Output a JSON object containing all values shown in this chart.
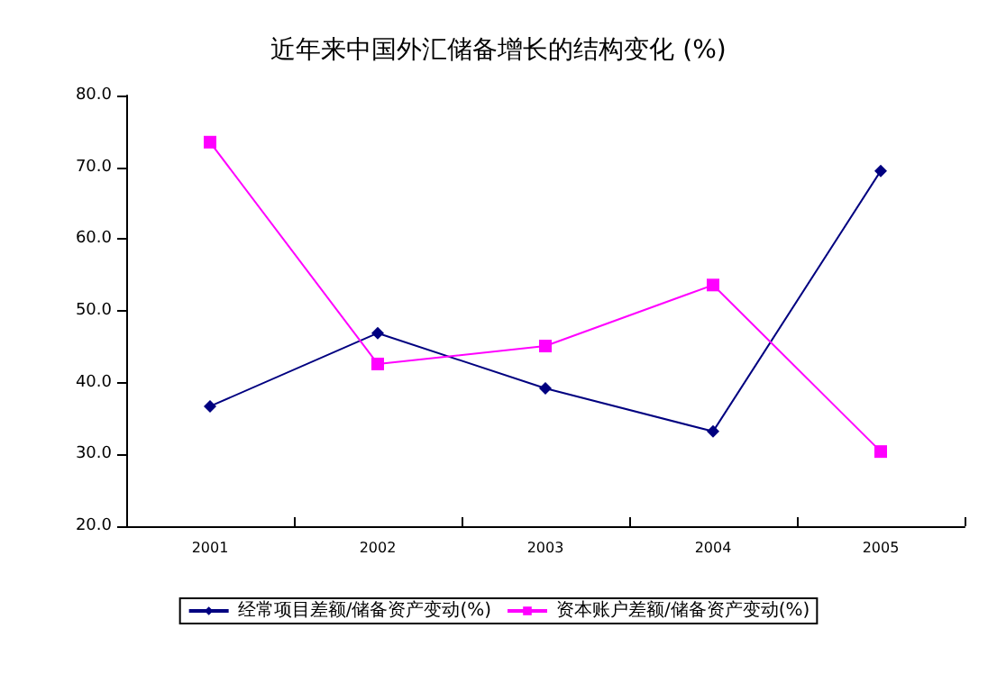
{
  "chart_data": {
    "type": "line",
    "title": "近年来中国外汇储备增长的结构变化 (%)",
    "categories": [
      "2001",
      "2002",
      "2003",
      "2004",
      "2005"
    ],
    "series": [
      {
        "name": "经常项目差额/储备资产变动(%)",
        "color": "#000080",
        "marker": "diamond",
        "values": [
          36.7,
          46.9,
          39.2,
          33.2,
          69.5
        ]
      },
      {
        "name": "资本账户差额/储备资产变动(%)",
        "color": "#ff00ff",
        "marker": "square",
        "values": [
          73.5,
          42.6,
          45.1,
          53.6,
          30.4
        ]
      }
    ],
    "ylim": [
      20,
      80
    ],
    "yticks": [
      {
        "value": 20,
        "label": "20.0"
      },
      {
        "value": 30,
        "label": "30.0"
      },
      {
        "value": 40,
        "label": "40.0"
      },
      {
        "value": 50,
        "label": "50.0"
      },
      {
        "value": 60,
        "label": "60.0"
      },
      {
        "value": 70,
        "label": "70.0"
      },
      {
        "value": 80,
        "label": "80.0"
      }
    ],
    "grid": false,
    "legend": "bottom",
    "line_style": "solid"
  }
}
